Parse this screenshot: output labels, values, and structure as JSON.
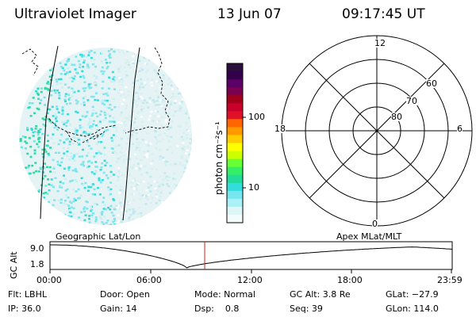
{
  "header": {
    "instrument": "Ultraviolet Imager",
    "date": "13 Jun 07",
    "time": "09:17:45 UT"
  },
  "colorbar": {
    "unit_label": "photon cm⁻²s⁻¹",
    "ticks": [
      "100",
      "10"
    ],
    "colors": [
      "#2a0f3c",
      "#33004a",
      "#5a0066",
      "#7a0050",
      "#a0001a",
      "#c8002a",
      "#e0102a",
      "#ff6600",
      "#ff9900",
      "#ffcc00",
      "#ffff00",
      "#ccff00",
      "#66ff33",
      "#33ee66",
      "#22dd99",
      "#33dddd",
      "#77e6ee",
      "#aaf0f4",
      "#dff6f8",
      "#f4fbfc"
    ]
  },
  "polar_plot": {
    "mlt_labels": [
      "12",
      "18",
      "6",
      "0"
    ],
    "lat_labels": [
      "60",
      "70",
      "80"
    ]
  },
  "orbit_plot": {
    "left_title": "Geographic Lat/Lon",
    "right_title": "Apex MLat/MLT",
    "y_axis_label": "GC Alt",
    "y_ticks": [
      "9.0",
      "1.8"
    ],
    "x_ticks": [
      "00:00",
      "06:00",
      "12:00",
      "18:00",
      "23:59"
    ],
    "marker_color": "#cc2222"
  },
  "info": {
    "flt": "Flt: LBHL",
    "ip": "IP: 36.0",
    "door": "Door: Open",
    "gain": "Gain: 14",
    "mode": "Mode: Normal",
    "dsp": "Dsp:    0.8",
    "gc_alt": "GC Alt: 3.8 Re",
    "seq": "Seq: 39",
    "glat": "GLat: −27.9",
    "glon": "GLon: 114.0"
  }
}
